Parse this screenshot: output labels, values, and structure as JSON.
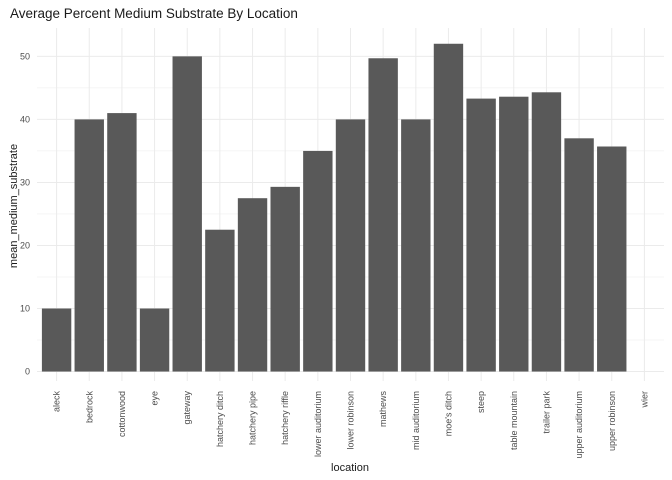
{
  "chart_data": {
    "type": "bar",
    "title": "Average Percent Medium Substrate By Location",
    "xlabel": "location",
    "ylabel": "mean_medium_substrate",
    "categories": [
      "aleck",
      "bedrock",
      "cottonwood",
      "eye",
      "gateway",
      "hatchery ditch",
      "hatchery pipe",
      "hatchery riffle",
      "lower auditorium",
      "lower robinson",
      "mathews",
      "mid auditorium",
      "moe's ditch",
      "steep",
      "table mountain",
      "trailer park",
      "upper auditorium",
      "upper robinson",
      "wier"
    ],
    "values": [
      10,
      40,
      41,
      10,
      50,
      22.5,
      27.5,
      29.3,
      35,
      40,
      49.7,
      40,
      52,
      43.3,
      43.6,
      44.3,
      37,
      35.7,
      null
    ],
    "yticks": [
      0,
      10,
      20,
      30,
      40,
      50
    ],
    "ylim": [
      -1.5,
      54.5
    ],
    "grid": true,
    "bar_color": "#595959",
    "grid_color": "#ebebeb"
  }
}
